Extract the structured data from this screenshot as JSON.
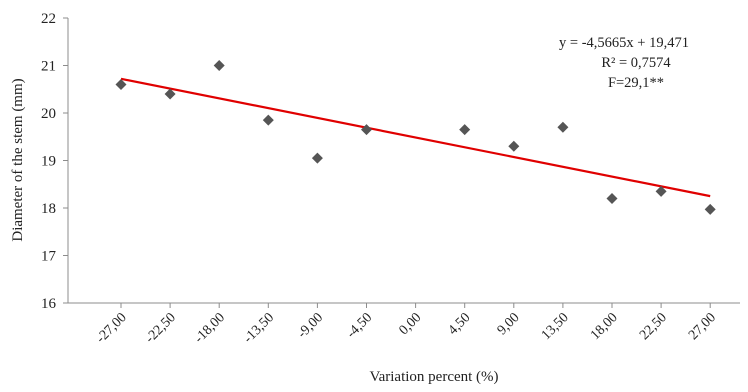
{
  "chart_data": {
    "type": "scatter",
    "xlabel": "Variation percent (%)",
    "ylabel": "Diameter  of the stem (mm)",
    "ylim": [
      16,
      22
    ],
    "yticks": [
      "16",
      "17",
      "18",
      "19",
      "20",
      "21",
      "22"
    ],
    "categories": [
      "-27,00",
      "-22,50",
      "-18,00",
      "-13,50",
      "-9,00",
      "-4,50",
      "0,00",
      "4,50",
      "9,00",
      "13,50",
      "18,00",
      "22,50",
      "27,00"
    ],
    "series": [
      {
        "marker": "diamond",
        "color": "#555555",
        "points": [
          {
            "x": "-27,00",
            "y": 20.6
          },
          {
            "x": "-22,50",
            "y": 20.4
          },
          {
            "x": "-18,00",
            "y": 21.0
          },
          {
            "x": "-13,50",
            "y": 19.85
          },
          {
            "x": "-9,00",
            "y": 19.05
          },
          {
            "x": "-4,50",
            "y": 19.65
          },
          {
            "x": "4,50",
            "y": 19.65
          },
          {
            "x": "9,00",
            "y": 19.3
          },
          {
            "x": "13,50",
            "y": 19.7
          },
          {
            "x": "18,00",
            "y": 18.2
          },
          {
            "x": "22,50",
            "y": 18.35
          },
          {
            "x": "27,00",
            "y": 17.97
          }
        ]
      }
    ],
    "trendline": {
      "color": "#e00000",
      "from": {
        "x": "-27,00",
        "y": 20.72
      },
      "to": {
        "x": "27,00",
        "y": 18.25
      }
    },
    "annotations": [
      "y = -4,5665x  + 19,471",
      "R² = 0,7574",
      "F=29,1**"
    ],
    "grid": false
  }
}
